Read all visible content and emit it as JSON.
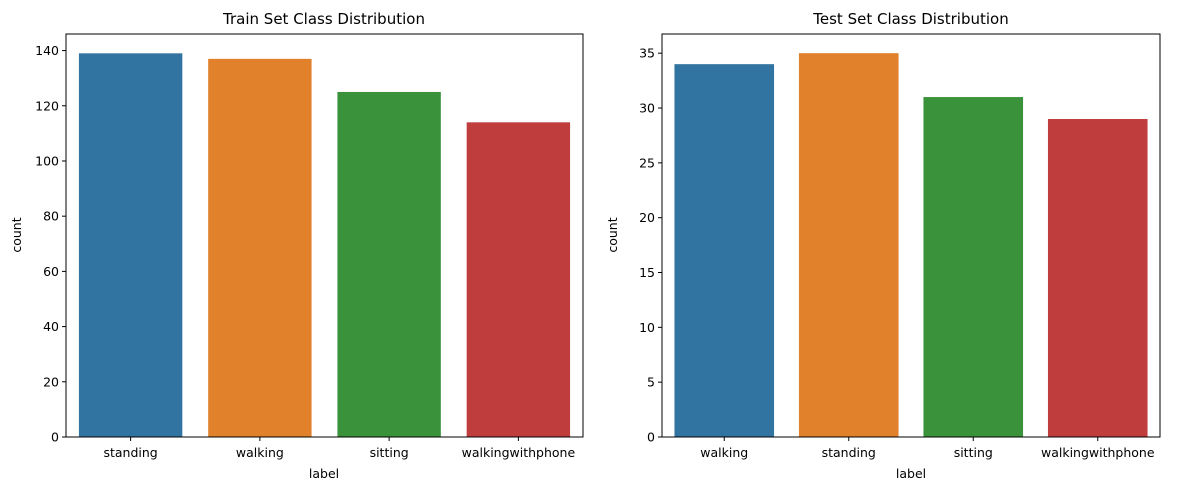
{
  "chart_data": [
    {
      "type": "bar",
      "title": "Train Set Class Distribution",
      "xlabel": "label",
      "ylabel": "count",
      "categories": [
        "standing",
        "walking",
        "sitting",
        "walkingwithphone"
      ],
      "values": [
        139,
        137,
        125,
        114
      ],
      "colors": [
        "#3274a1",
        "#e1812c",
        "#3a923a",
        "#c03d3e"
      ],
      "ylim": [
        0,
        146
      ],
      "yticks": [
        0,
        20,
        40,
        60,
        80,
        100,
        120,
        140
      ],
      "grid": false,
      "legend": "none"
    },
    {
      "type": "bar",
      "title": "Test Set Class Distribution",
      "xlabel": "label",
      "ylabel": "count",
      "categories": [
        "walking",
        "standing",
        "sitting",
        "walkingwithphone"
      ],
      "values": [
        34,
        35,
        31,
        29
      ],
      "colors": [
        "#3274a1",
        "#e1812c",
        "#3a923a",
        "#c03d3e"
      ],
      "ylim": [
        0,
        36.75
      ],
      "yticks": [
        0,
        5,
        10,
        15,
        20,
        25,
        30,
        35
      ],
      "grid": false,
      "legend": "none"
    }
  ]
}
